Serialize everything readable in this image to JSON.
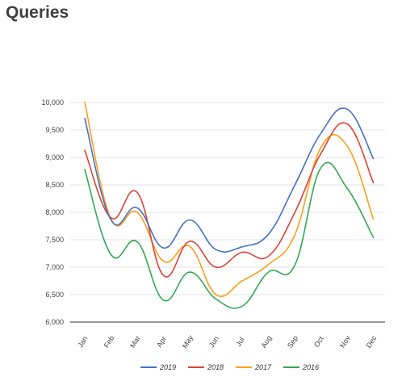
{
  "page": {
    "title": "Queries"
  },
  "chart_data": {
    "type": "line",
    "title": "",
    "xlabel": "",
    "ylabel": "",
    "categories": [
      "Jan",
      "Feb",
      "Mar",
      "Apr",
      "May",
      "Jun",
      "Jul",
      "Aug",
      "Sep",
      "Oct",
      "Nov",
      "Dec"
    ],
    "ylim": [
      6000,
      10000
    ],
    "yticks": [
      6000,
      6500,
      7000,
      7500,
      8000,
      8500,
      9000,
      9500,
      10000
    ],
    "ytick_labels": [
      "6,000",
      "6,500",
      "7,000",
      "7,500",
      "8,000",
      "8,500",
      "9,000",
      "9,500",
      "10,000"
    ],
    "grid": true,
    "legend_position": "bottom",
    "series": [
      {
        "name": "2019",
        "color": "#4472c4",
        "values": [
          9710,
          7860,
          8080,
          7350,
          7860,
          7320,
          7370,
          7600,
          8490,
          9440,
          9880,
          8980
        ]
      },
      {
        "name": "2018",
        "color": "#db4437",
        "values": [
          9130,
          7900,
          8360,
          6850,
          7470,
          7000,
          7270,
          7200,
          7990,
          9070,
          9610,
          8540
        ]
      },
      {
        "name": "2017",
        "color": "#ff9e1b",
        "values": [
          10000,
          7880,
          8000,
          7110,
          7380,
          6500,
          6750,
          7050,
          7580,
          9180,
          9210,
          7880
        ]
      },
      {
        "name": "2016",
        "color": "#34a853",
        "values": [
          8780,
          7230,
          7460,
          6400,
          6910,
          6420,
          6290,
          6910,
          7030,
          8810,
          8440,
          7540
        ]
      }
    ]
  }
}
